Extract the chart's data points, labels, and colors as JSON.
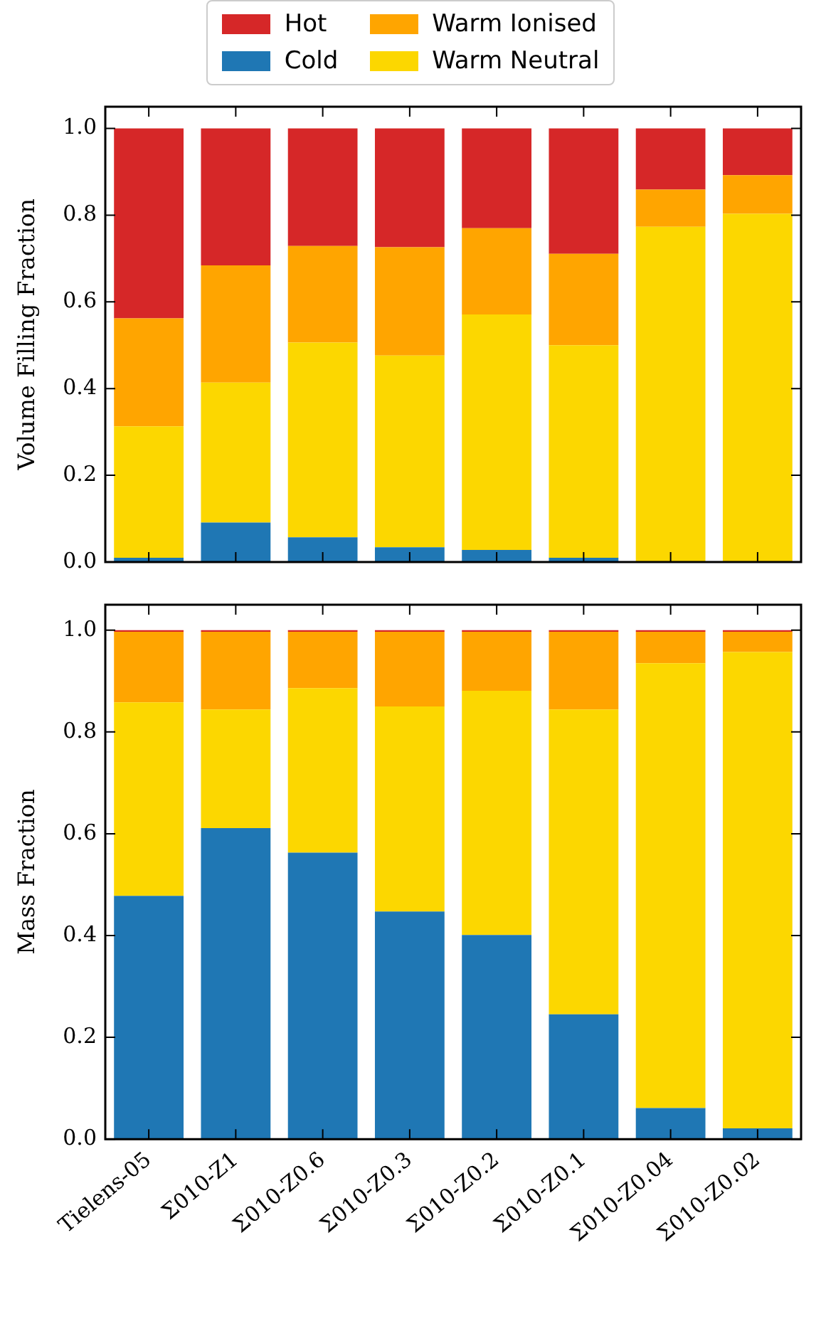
{
  "chart_data": [
    {
      "type": "bar",
      "stacked": true,
      "ylabel": "Volume Filling Fraction",
      "legend": "top",
      "tick_labels": "y",
      "categories": [
        null,
        null,
        null,
        null,
        null,
        null,
        null,
        null
      ],
      "series": [
        {
          "name": "Cold",
          "color": "#1f77b4",
          "values": [
            0.01,
            0.091,
            0.057,
            0.034,
            0.028,
            0.01,
            0,
            0
          ]
        },
        {
          "name": "Warm Neutral",
          "color": "#fcd700",
          "values": [
            0.303,
            0.323,
            0.449,
            0.442,
            0.543,
            0.49,
            0.773,
            0.803
          ]
        },
        {
          "name": "Warm Ionised",
          "color": "#ffa500",
          "values": [
            0.249,
            0.27,
            0.223,
            0.25,
            0.199,
            0.211,
            0.086,
            0.089
          ]
        },
        {
          "name": "Hot",
          "color": "#d62728",
          "values": [
            0.438,
            0.316,
            0.271,
            0.274,
            0.23,
            0.289,
            0.141,
            0.108
          ]
        }
      ],
      "ylim": [
        0,
        1.05
      ],
      "yticks": [
        {
          "value": 0,
          "label": "0.0"
        },
        {
          "value": 0.2,
          "label": "0.2"
        },
        {
          "value": 0.4,
          "label": "0.4"
        },
        {
          "value": 0.6,
          "label": "0.6"
        },
        {
          "value": 0.8,
          "label": "0.8"
        },
        {
          "value": 1,
          "label": "1.0"
        }
      ]
    },
    {
      "type": "bar",
      "stacked": true,
      "ylabel": "Mass Fraction",
      "categories": [
        "Tielens-05",
        "Σ010-Z1",
        "Σ010-Z0.6",
        "Σ010-Z0.3",
        "Σ010-Z0.2",
        "Σ010-Z0.1",
        "Σ010-Z0.04",
        "Σ010-Z0.02"
      ],
      "series": [
        {
          "color": "#1f77b4",
          "values": [
            0.478,
            0.611,
            0.563,
            0.447,
            0.401,
            0.245,
            0.061,
            0.021
          ]
        },
        {
          "color": "#fcd700",
          "values": [
            0.38,
            0.233,
            0.323,
            0.403,
            0.48,
            0.599,
            0.874,
            0.936
          ]
        },
        {
          "color": "#ffa500",
          "values": [
            0.139,
            0.153,
            0.111,
            0.147,
            0.116,
            0.153,
            0.062,
            0.04
          ]
        },
        {
          "color": "#d62728",
          "values": [
            0.003,
            0.003,
            0.003,
            0.003,
            0.003,
            0.003,
            0.003,
            0.003
          ]
        }
      ],
      "ylim": [
        0,
        1.05
      ],
      "yticks": [
        {
          "value": 0,
          "label": "0.0"
        },
        {
          "value": 0.2,
          "label": "0.2"
        },
        {
          "value": 0.4,
          "label": "0.4"
        },
        {
          "value": 0.6,
          "label": "0.6"
        },
        {
          "value": 0.8,
          "label": "0.8"
        },
        {
          "value": 1,
          "label": "1.0"
        }
      ]
    }
  ]
}
